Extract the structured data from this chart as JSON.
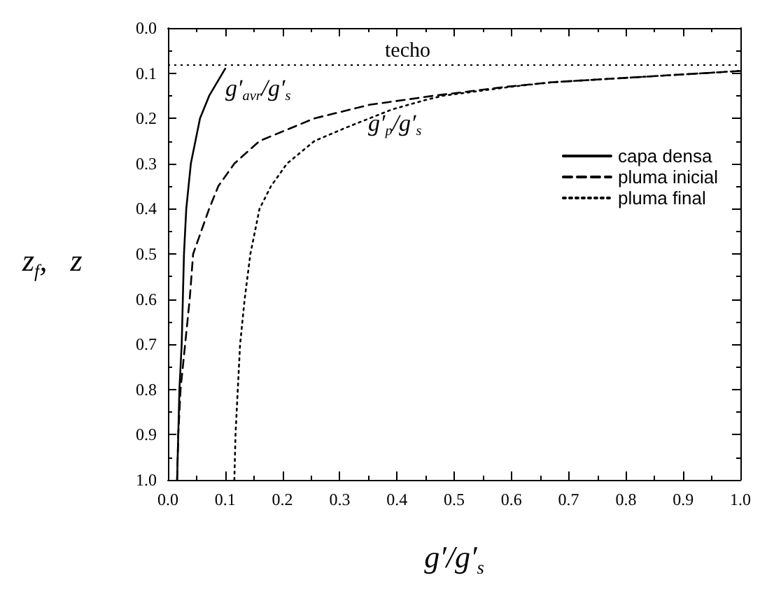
{
  "chart_data": {
    "type": "line",
    "xlabel": "g′/g′$_{s}$",
    "ylabel": "z$_{f}$,   z",
    "xlim": [
      0,
      1
    ],
    "xticks": [
      {
        "value": 0,
        "label": "0.0"
      },
      0.1,
      0.2,
      0.3,
      0.4,
      0.5,
      0.6,
      0.7,
      0.8,
      0.9,
      {
        "value": 1,
        "label": "1.0"
      }
    ],
    "ylim": [
      1,
      0
    ],
    "yticks": [
      {
        "value": 0,
        "label": "0.0"
      },
      0.1,
      0.2,
      0.3,
      0.4,
      0.5,
      0.6,
      0.7,
      0.8,
      0.9,
      {
        "value": 1,
        "label": "1.0"
      }
    ],
    "grid": false,
    "legend": "top right",
    "marker": "none",
    "series": [
      {
        "name": "capa densa",
        "color": "#000000",
        "line_style": "solid",
        "x": [
          0.016,
          0.02,
          0.024,
          0.026,
          0.028,
          0.032,
          0.04,
          0.056,
          0.072,
          0.1
        ],
        "values": [
          1.0,
          0.8,
          0.7,
          0.6,
          0.5,
          0.4,
          0.3,
          0.2,
          0.15,
          0.09
        ]
      },
      {
        "name": "pluma inicial",
        "color": "#000000",
        "line_style": "dashed",
        "x": [
          0.016,
          0.018,
          0.022,
          0.03,
          0.038,
          0.044,
          0.072,
          0.088,
          0.116,
          0.16,
          0.256,
          0.352,
          0.464,
          0.592,
          0.672,
          0.936,
          1.0
        ],
        "values": [
          1.0,
          0.9,
          0.8,
          0.7,
          0.6,
          0.5,
          0.4,
          0.35,
          0.3,
          0.25,
          0.2,
          0.17,
          0.15,
          0.13,
          0.12,
          0.1,
          0.095
        ]
      },
      {
        "name": "pluma final",
        "color": "#000000",
        "line_style": "dotted",
        "x": [
          0.116,
          0.118,
          0.122,
          0.126,
          0.134,
          0.144,
          0.16,
          0.18,
          0.208,
          0.256,
          0.312,
          0.352,
          0.392,
          0.448,
          0.48,
          0.6,
          0.672,
          0.936,
          1.0
        ],
        "values": [
          1.0,
          0.9,
          0.8,
          0.7,
          0.6,
          0.5,
          0.4,
          0.35,
          0.3,
          0.25,
          0.22,
          0.2,
          0.18,
          0.16,
          0.15,
          0.13,
          0.12,
          0.1,
          0.095
        ]
      }
    ],
    "ref_lines": [
      {
        "axis": "y",
        "value": 0.082,
        "label": "techo",
        "line_style": "dotted",
        "color": "#000000"
      }
    ],
    "annotations": [
      "g′$_{avr}$/g′$_{s}$",
      "g′$_{p}$/g′$_{s}$"
    ]
  }
}
